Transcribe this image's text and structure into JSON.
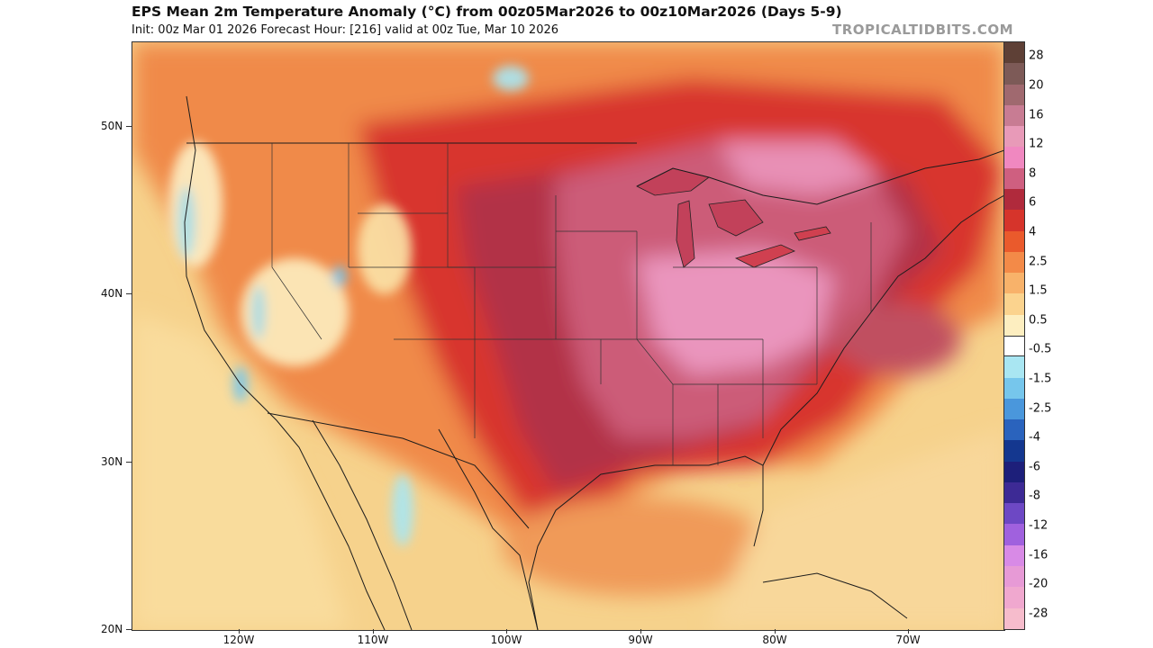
{
  "header": {
    "title": "EPS Mean 2m Temperature Anomaly (°C) from 00z05Mar2026 to 00z10Mar2026 (Days 5-9)",
    "subtitle": "Init: 00z Mar 01 2026   Forecast Hour: [216]   valid at 00z Tue, Mar 10 2026",
    "credit": "TROPICALTIDBITS.COM"
  },
  "axes": {
    "latitude_labels": [
      "50N",
      "40N",
      "30N",
      "20N"
    ],
    "longitude_labels": [
      "120W",
      "110W",
      "100W",
      "90W",
      "80W",
      "70W"
    ]
  },
  "colorbar": {
    "labels": [
      "28",
      "20",
      "16",
      "12",
      "8",
      "6",
      "4",
      "2.5",
      "1.5",
      "0.5",
      "-0.5",
      "-1.5",
      "-2.5",
      "-4",
      "-6",
      "-8",
      "-12",
      "-16",
      "-20",
      "-28"
    ],
    "colors": [
      "#5e4036",
      "#7d5a57",
      "#a0696f",
      "#c87c93",
      "#e89ab8",
      "#f088c0",
      "#cf5f80",
      "#b02a3c",
      "#d6342b",
      "#ea5a2c",
      "#f38a48",
      "#f8b26a",
      "#fbd38e",
      "#fdeec0",
      "#ffffff",
      "#a9e6f2",
      "#76c6ec",
      "#4a97dc",
      "#2a63bd",
      "#14378f",
      "#1d1f7a",
      "#3d2a95",
      "#6d48c4",
      "#a061de",
      "#d88ae6",
      "#e79ad6",
      "#f0a8cf",
      "#f6bccc"
    ]
  },
  "chart_data": {
    "type": "heatmap",
    "title": "EPS Mean 2m Temperature Anomaly (°C) from 00z05Mar2026 to 00z10Mar2026 (Days 5-9)",
    "units": "°C",
    "lat_range": [
      20,
      55
    ],
    "lon_range": [
      -128,
      -63
    ],
    "colorbar_levels": [
      28,
      20,
      16,
      12,
      8,
      6,
      4,
      2.5,
      1.5,
      0.5,
      -0.5,
      -1.5,
      -2.5,
      -4,
      -6,
      -8,
      -12,
      -16,
      -20,
      -28
    ]
  }
}
